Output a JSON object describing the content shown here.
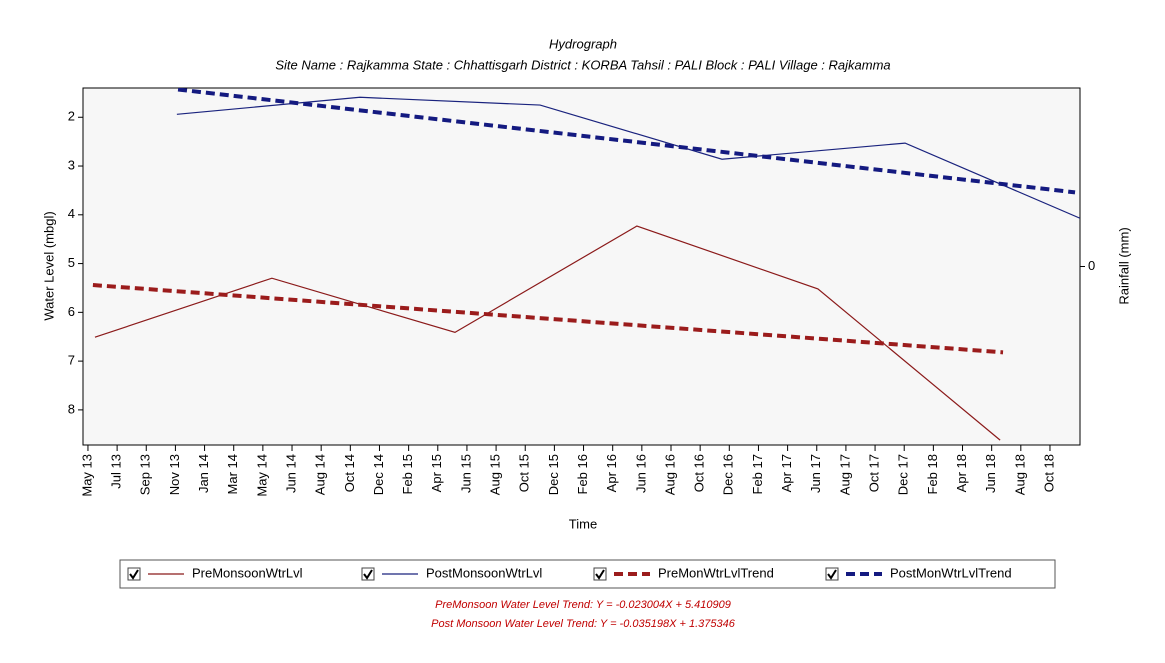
{
  "chart_data": {
    "type": "line",
    "title": "Hydrograph",
    "subtitle": "Site Name : Rajkamma  State : Chhattisgarh District : KORBA  Tahsil : PALI  Block : PALI Village : Rajkamma",
    "x_label": "Time",
    "y_label": "Water Level (mbgl)",
    "y2_label": "Rainfall (mm)",
    "y_inverted": true,
    "xlim": [
      -0.17,
      34.03
    ],
    "xticks": [
      {
        "value": 0,
        "label": "May 13"
      },
      {
        "value": 1,
        "label": "Jul 13"
      },
      {
        "value": 2,
        "label": "Sep 13"
      },
      {
        "value": 3,
        "label": "Nov 13"
      },
      {
        "value": 4,
        "label": "Jan 14"
      },
      {
        "value": 5,
        "label": "Mar 14"
      },
      {
        "value": 6,
        "label": "May 14"
      },
      {
        "value": 7,
        "label": "Jun 14"
      },
      {
        "value": 8,
        "label": "Aug 14"
      },
      {
        "value": 9,
        "label": "Oct 14"
      },
      {
        "value": 10,
        "label": "Dec 14"
      },
      {
        "value": 11,
        "label": "Feb 15"
      },
      {
        "value": 12,
        "label": "Apr 15"
      },
      {
        "value": 13,
        "label": "Jun 15"
      },
      {
        "value": 14,
        "label": "Aug 15"
      },
      {
        "value": 15,
        "label": "Oct 15"
      },
      {
        "value": 16,
        "label": "Dec 15"
      },
      {
        "value": 17,
        "label": "Feb 16"
      },
      {
        "value": 18,
        "label": "Apr 16"
      },
      {
        "value": 19,
        "label": "Jun 16"
      },
      {
        "value": 20,
        "label": "Aug 16"
      },
      {
        "value": 21,
        "label": "Oct 16"
      },
      {
        "value": 22,
        "label": "Dec 16"
      },
      {
        "value": 23,
        "label": "Feb 17"
      },
      {
        "value": 24,
        "label": "Apr 17"
      },
      {
        "value": 25,
        "label": "Jun 17"
      },
      {
        "value": 26,
        "label": "Aug 17"
      },
      {
        "value": 27,
        "label": "Oct 17"
      },
      {
        "value": 28,
        "label": "Dec 17"
      },
      {
        "value": 29,
        "label": "Feb 18"
      },
      {
        "value": 30,
        "label": "Apr 18"
      },
      {
        "value": 31,
        "label": "Jun 18"
      },
      {
        "value": 32,
        "label": "Aug 18"
      },
      {
        "value": 33,
        "label": "Oct 18"
      }
    ],
    "ylim": [
      1.4,
      8.72
    ],
    "yticks": [
      2,
      3,
      4,
      5,
      6,
      7,
      8
    ],
    "y2lim": [
      -1,
      1
    ],
    "y2ticks": [
      0
    ],
    "series": [
      {
        "name": "PreMonsoonWtrLvl",
        "color": "#8b1a1a",
        "dashed": false,
        "x": [
          0.24,
          6.31,
          12.59,
          18.83,
          25.04,
          31.29
        ],
        "values": [
          6.51,
          5.3,
          6.41,
          4.23,
          5.52,
          8.62
        ]
      },
      {
        "name": "PostMonsoonWtrLvl",
        "color": "#1a237e",
        "dashed": false,
        "x": [
          3.05,
          9.33,
          15.51,
          21.75,
          28.03,
          34.03
        ],
        "values": [
          1.94,
          1.59,
          1.75,
          2.86,
          2.53,
          4.07
        ]
      },
      {
        "name": "PreMonWtrLvlTrend",
        "color": "#9b1c1c",
        "dashed": true,
        "x": [
          0.17,
          31.39
        ],
        "values": [
          5.44,
          6.82
        ]
      },
      {
        "name": "PostMonWtrLvlTrend",
        "color": "#141a80",
        "dashed": true,
        "x": [
          3.09,
          33.86
        ],
        "values": [
          1.43,
          3.54
        ]
      }
    ],
    "notes": [
      "PreMonsoon Water Level Trend: Y = -0.023004X + 5.410909",
      "Post Monsoon Water Level Trend: Y = -0.035198X + 1.375346"
    ]
  }
}
